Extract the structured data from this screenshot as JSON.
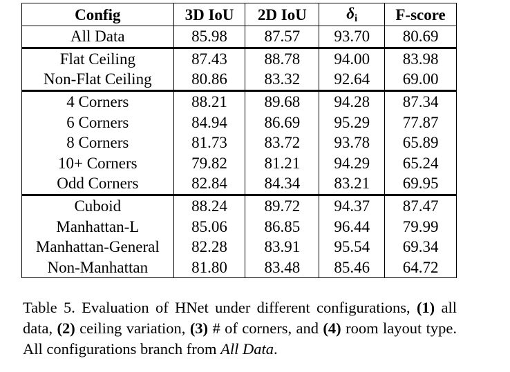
{
  "table": {
    "headers": {
      "config": "Config",
      "iou3d": "3D IoU",
      "iou2d": "2D IoU",
      "delta": "δ",
      "delta_sub": "i",
      "fscore": "F-score"
    },
    "rows": [
      {
        "config": "All Data",
        "iou3d": "85.98",
        "iou2d": "87.57",
        "delta": "93.70",
        "fscore": "80.69"
      },
      {
        "config": "Flat Ceiling",
        "iou3d": "87.43",
        "iou2d": "88.78",
        "delta": "94.00",
        "fscore": "83.98"
      },
      {
        "config": "Non-Flat Ceiling",
        "iou3d": "80.86",
        "iou2d": "83.32",
        "delta": "92.64",
        "fscore": "69.00"
      },
      {
        "config": "4 Corners",
        "iou3d": "88.21",
        "iou2d": "89.68",
        "delta": "94.28",
        "fscore": "87.34"
      },
      {
        "config": "6 Corners",
        "iou3d": "84.94",
        "iou2d": "86.69",
        "delta": "95.29",
        "fscore": "77.87"
      },
      {
        "config": "8 Corners",
        "iou3d": "81.73",
        "iou2d": "83.72",
        "delta": "93.78",
        "fscore": "65.89"
      },
      {
        "config": "10+ Corners",
        "iou3d": "79.82",
        "iou2d": "81.21",
        "delta": "94.29",
        "fscore": "65.24"
      },
      {
        "config": "Odd Corners",
        "iou3d": "82.84",
        "iou2d": "84.34",
        "delta": "83.21",
        "fscore": "69.95"
      },
      {
        "config": "Cuboid",
        "iou3d": "88.24",
        "iou2d": "89.72",
        "delta": "94.37",
        "fscore": "87.47"
      },
      {
        "config": "Manhattan-L",
        "iou3d": "85.06",
        "iou2d": "86.85",
        "delta": "96.44",
        "fscore": "79.99"
      },
      {
        "config": "Manhattan-General",
        "iou3d": "82.28",
        "iou2d": "83.91",
        "delta": "95.54",
        "fscore": "69.34"
      },
      {
        "config": "Non-Manhattan",
        "iou3d": "81.80",
        "iou2d": "83.48",
        "delta": "85.46",
        "fscore": "64.72"
      }
    ]
  },
  "caption": {
    "label": "Table 5. Evaluation of HNet under different configurations,",
    "m1": "(1)",
    "t1": "all data,",
    "m2": "(2)",
    "t2": "ceiling variation,",
    "m3": "(3)",
    "t3": "# of corners, and",
    "m4": "(4)",
    "t4": "room layout type. All configurations branch from",
    "ref": "All Data",
    "end": "."
  }
}
